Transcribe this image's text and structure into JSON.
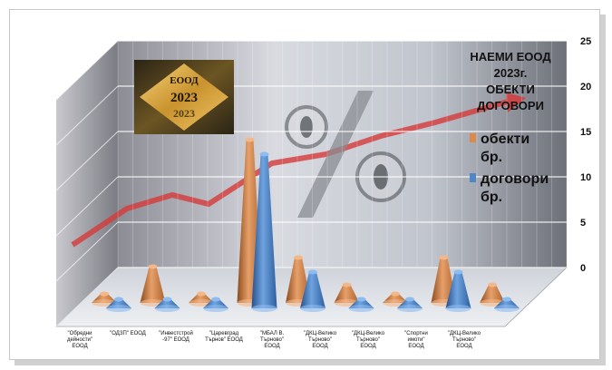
{
  "chart_data": {
    "type": "bar",
    "title_lines": [
      "НАЕМИ ЕООД",
      "2023г.",
      "ОБЕКТИ",
      "ДОГОВОРИ"
    ],
    "categories": [
      [
        "\"Обредни",
        "дейности\"",
        "ЕООД"
      ],
      [
        "\"ОДЗП\" ЕООД"
      ],
      [
        "\"Инвестстрой",
        "-97\" ЕООД"
      ],
      [
        "\"Царевград",
        "Търнов\" ЕООД"
      ],
      [
        "\"МБАЛ В.",
        "Търново\"",
        "ЕООД"
      ],
      [
        "\"ДКЦ-Велико",
        "Търново\"",
        "ЕООД"
      ],
      [
        "\"ДКЦ-Велико",
        "Търново\"",
        "ЕООД"
      ],
      [
        "\"Спортни",
        "имоти\"",
        "ЕООД"
      ],
      [
        "\"ДКЦ-Велико",
        "Търново\"",
        "ЕООД"
      ]
    ],
    "series": [
      {
        "name": "обекти бр.",
        "values": [
          1,
          4,
          1,
          18,
          5,
          2,
          1,
          5,
          2
        ]
      },
      {
        "name": "договори бр.",
        "values": [
          1,
          1,
          1,
          17,
          4,
          1,
          1,
          4,
          1
        ]
      }
    ],
    "ylim": [
      0,
      25
    ],
    "yticks": [
      "25",
      "20",
      "15",
      "10",
      "5",
      "0"
    ],
    "legend_position": "right",
    "grid": true,
    "colors": {
      "series1": "#d98a4c",
      "series2": "#4f86c6"
    }
  },
  "logo": {
    "line1": "ЕООД",
    "line2": "2023",
    "line3": "2023"
  }
}
